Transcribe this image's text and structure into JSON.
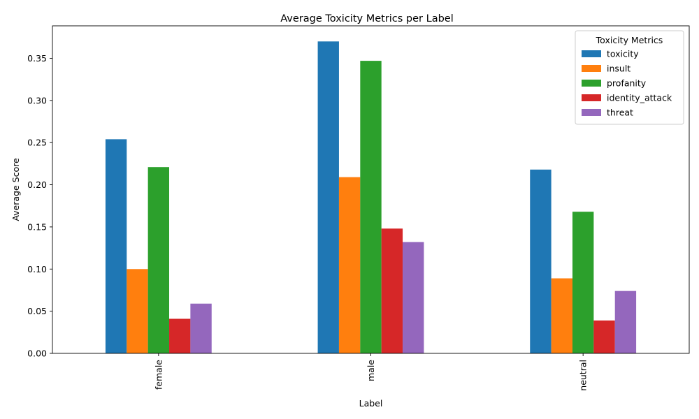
{
  "chart_data": {
    "type": "bar",
    "title": "Average Toxicity Metrics per Label",
    "xlabel": "Label",
    "ylabel": "Average Score",
    "categories": [
      "female",
      "male",
      "neutral"
    ],
    "series": [
      {
        "name": "toxicity",
        "color": "#1f77b4",
        "values": [
          0.254,
          0.37,
          0.218
        ]
      },
      {
        "name": "insult",
        "color": "#ff7f0e",
        "values": [
          0.1,
          0.209,
          0.089
        ]
      },
      {
        "name": "profanity",
        "color": "#2ca02c",
        "values": [
          0.221,
          0.347,
          0.168
        ]
      },
      {
        "name": "identity_attack",
        "color": "#d62728",
        "values": [
          0.041,
          0.148,
          0.039
        ]
      },
      {
        "name": "threat",
        "color": "#9467bd",
        "values": [
          0.059,
          0.132,
          0.074
        ]
      }
    ],
    "ylim": [
      0,
      0.3885
    ],
    "yticks": [
      0.0,
      0.05,
      0.1,
      0.15,
      0.2,
      0.25,
      0.3,
      0.35
    ],
    "ytick_labels": [
      "0.00",
      "0.05",
      "0.10",
      "0.15",
      "0.20",
      "0.25",
      "0.30",
      "0.35"
    ],
    "legend": {
      "title": "Toxicity Metrics",
      "position": "top-right"
    },
    "grid": false
  }
}
